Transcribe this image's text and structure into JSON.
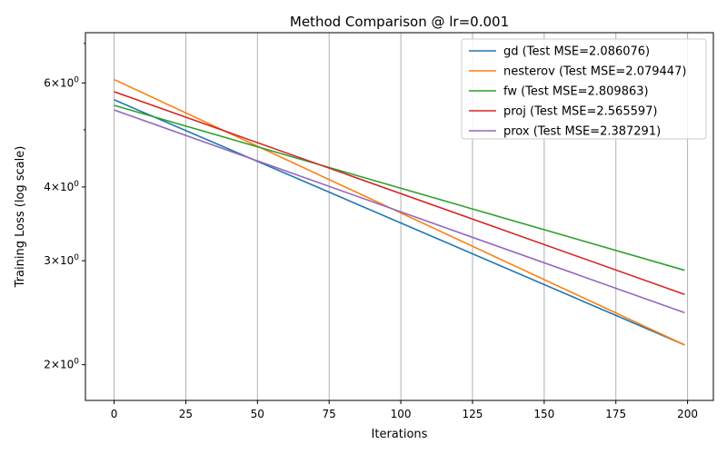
{
  "chart_data": {
    "type": "line",
    "title": "Method Comparison @ lr=0.001",
    "xlabel": "Iterations",
    "ylabel": "Training Loss (log scale)",
    "xlim": [
      -10,
      209
    ],
    "ylim": [
      1.74,
      7.3
    ],
    "yscale": "log",
    "grid": "vertical lines at x ticks",
    "legend_position": "top-right",
    "x_ticks": [
      0,
      25,
      50,
      75,
      100,
      125,
      150,
      175,
      200
    ],
    "x_tick_labels": [
      "0",
      "25",
      "50",
      "75",
      "100",
      "125",
      "150",
      "175",
      "200"
    ],
    "y_ticks": [
      2,
      3,
      4,
      6
    ],
    "y_tick_labels": [
      {
        "base": "2",
        "exp": "0"
      },
      {
        "base": "3",
        "exp": "0"
      },
      {
        "base": "4",
        "exp": "0"
      },
      {
        "base": "6",
        "exp": "0"
      }
    ],
    "y_tick_times": "×10",
    "y_minor_ticks": [
      5,
      7
    ],
    "x": [
      0,
      199
    ],
    "series": [
      {
        "name": "gd (Test MSE=2.086076)",
        "color": "#1f77b4",
        "values": [
          5.62,
          2.16
        ]
      },
      {
        "name": "nesterov (Test MSE=2.079447)",
        "color": "#ff7f0e",
        "values": [
          6.08,
          2.16
        ]
      },
      {
        "name": "fw (Test MSE=2.809863)",
        "color": "#2ca02c",
        "values": [
          5.5,
          2.89
        ]
      },
      {
        "name": "proj (Test MSE=2.565597)",
        "color": "#d62728",
        "values": [
          5.8,
          2.63
        ]
      },
      {
        "name": "prox (Test MSE=2.387291)",
        "color": "#9467bd",
        "values": [
          5.4,
          2.45
        ]
      }
    ]
  }
}
